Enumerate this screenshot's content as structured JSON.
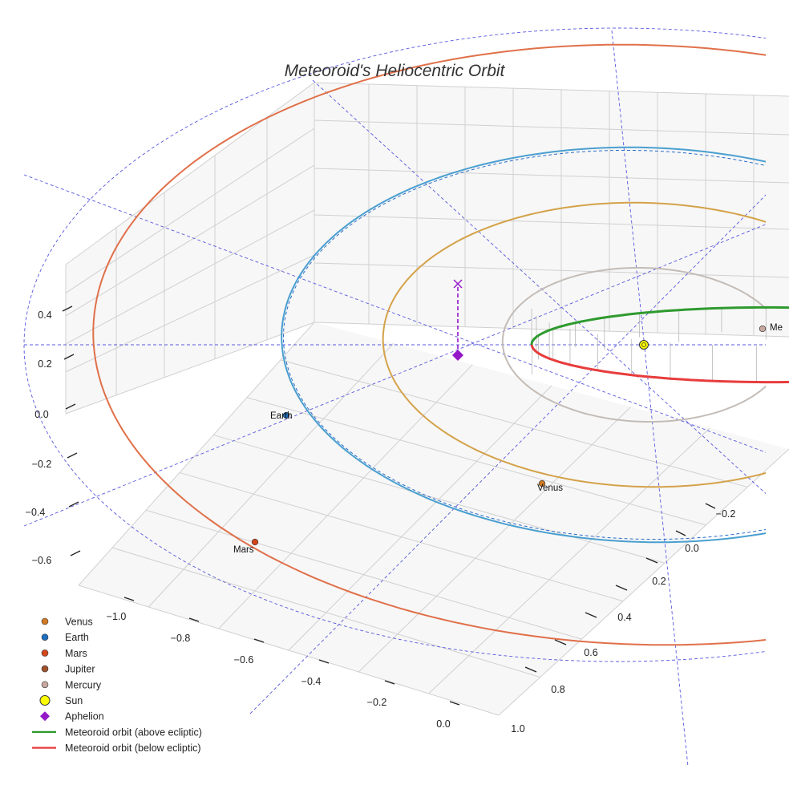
{
  "chart_data": {
    "type": "scatter",
    "projection": "3d",
    "title": "Meteoroid's Heliocentric Orbit",
    "axes": {
      "x": {
        "ticks": [
          "−1.0",
          "−0.8",
          "−0.6",
          "−0.4",
          "−0.2",
          "0.0"
        ]
      },
      "y": {
        "ticks": [
          "−0.2",
          "0.0",
          "0.2",
          "0.4",
          "0.6",
          "0.8",
          "1.0"
        ]
      },
      "z": {
        "ticks": [
          "0.4",
          "0.2",
          "0.0",
          "−0.2",
          "−0.4",
          "−0.6"
        ]
      }
    },
    "planet_orbits": [
      {
        "name": "Mars",
        "color": "#e0704a",
        "semi_major_au": 1.52
      },
      {
        "name": "Earth",
        "color": "#4a9fd0",
        "semi_major_au": 1.0
      },
      {
        "name": "Venus",
        "color": "#d4a24a",
        "semi_major_au": 0.72
      },
      {
        "name": "Mercury",
        "color": "#c4bcb6",
        "semi_major_au": 0.39
      }
    ],
    "planet_labels": [
      {
        "name": "Earth",
        "text": "Earth"
      },
      {
        "name": "Venus",
        "text": "Venus"
      },
      {
        "name": "Mars",
        "text": "Mars"
      },
      {
        "name": "Mercury",
        "text": "Me"
      }
    ],
    "meteoroid_orbit": {
      "above_color": "#2e9a2e",
      "below_color": "#e83c3c",
      "perihelion_au": 0.31,
      "aphelion_au": 1.0
    },
    "aphelion": {
      "color": "#9418c8",
      "marker": "diamond"
    },
    "legend": {
      "position": "lower-left",
      "entries": [
        {
          "label": "Venus",
          "kind": "dot",
          "color": "#d07a24"
        },
        {
          "label": "Earth",
          "kind": "dot",
          "color": "#1f6fbf"
        },
        {
          "label": "Mars",
          "kind": "dot",
          "color": "#d4471c"
        },
        {
          "label": "Jupiter",
          "kind": "dot",
          "color": "#a0522d"
        },
        {
          "label": "Mercury",
          "kind": "dot",
          "color": "#c8a8a0"
        },
        {
          "label": "Sun",
          "kind": "sun",
          "color": "#ffff00"
        },
        {
          "label": "Aphelion",
          "kind": "diamond",
          "color": "#9418c8"
        },
        {
          "label": "Meteoroid orbit (above ecliptic)",
          "kind": "line",
          "color": "#2e9a2e"
        },
        {
          "label": "Meteoroid orbit (below ecliptic)",
          "kind": "line",
          "color": "#e83c3c"
        }
      ]
    }
  }
}
